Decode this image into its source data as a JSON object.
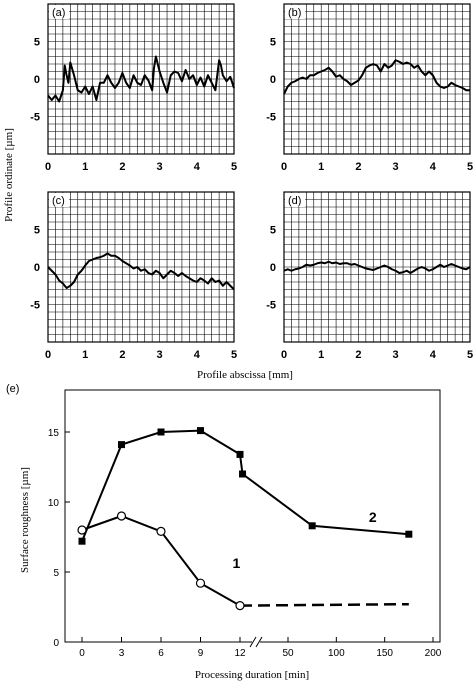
{
  "figure": {
    "profile_ylabel": "Profile ordinate [µm]",
    "profile_xlabel": "Profile abscissa [mm]"
  },
  "chart_data": [
    {
      "type": "line",
      "panel": "(a)",
      "xlim": [
        0,
        5
      ],
      "ylim": [
        -10,
        10
      ],
      "xticks": [
        "0",
        "1",
        "2",
        "3",
        "4",
        "5"
      ],
      "yticks": [
        "5",
        "0",
        "-5"
      ],
      "xlabel": "Profile abscissa [mm]",
      "ylabel": "Profile ordinate [µm]",
      "grid": true,
      "series": [
        {
          "x": [
            0,
            0.1,
            0.2,
            0.3,
            0.4,
            0.45,
            0.5,
            0.55,
            0.6,
            0.7,
            0.8,
            0.9,
            1.0,
            1.1,
            1.2,
            1.3,
            1.4,
            1.5,
            1.6,
            1.7,
            1.8,
            1.9,
            2.0,
            2.1,
            2.2,
            2.3,
            2.4,
            2.5,
            2.6,
            2.7,
            2.8,
            2.85,
            2.9,
            3.0,
            3.1,
            3.2,
            3.3,
            3.4,
            3.5,
            3.6,
            3.7,
            3.8,
            3.9,
            4.0,
            4.1,
            4.2,
            4.3,
            4.4,
            4.5,
            4.6,
            4.65,
            4.7,
            4.8,
            4.9,
            5.0
          ],
          "y": [
            -2.2,
            -2.8,
            -2.2,
            -3.0,
            -1.5,
            1.8,
            0.5,
            -0.5,
            2.2,
            0.5,
            -1.5,
            -1.8,
            -1.0,
            -2.0,
            -1.0,
            -2.8,
            -0.5,
            -0.5,
            0.5,
            -0.5,
            -1.2,
            -0.5,
            0.8,
            -0.5,
            -1.2,
            0.5,
            -0.5,
            -0.8,
            0.5,
            -0.2,
            -1.5,
            1.5,
            3.0,
            1.0,
            -0.5,
            -1.8,
            0.5,
            1.0,
            0.8,
            -0.3,
            1.2,
            0.0,
            0.5,
            -0.8,
            0.2,
            -1.0,
            0.5,
            -0.5,
            -1.5,
            2.5,
            1.8,
            0.5,
            -0.3,
            0.3,
            -1.2
          ]
        }
      ]
    },
    {
      "type": "line",
      "panel": "(b)",
      "xlim": [
        0,
        5
      ],
      "ylim": [
        -10,
        10
      ],
      "xticks": [
        "0",
        "1",
        "2",
        "3",
        "4",
        "5"
      ],
      "yticks": [
        "5",
        "0",
        "-5"
      ],
      "grid": true,
      "series": [
        {
          "x": [
            0,
            0.1,
            0.2,
            0.3,
            0.4,
            0.5,
            0.6,
            0.7,
            0.8,
            0.9,
            1.0,
            1.1,
            1.2,
            1.3,
            1.4,
            1.5,
            1.6,
            1.7,
            1.8,
            1.9,
            2.0,
            2.1,
            2.2,
            2.3,
            2.4,
            2.5,
            2.6,
            2.7,
            2.8,
            2.9,
            3.0,
            3.1,
            3.2,
            3.3,
            3.4,
            3.5,
            3.6,
            3.7,
            3.8,
            3.9,
            4.0,
            4.1,
            4.2,
            4.3,
            4.4,
            4.5,
            4.6,
            4.7,
            4.8,
            4.9,
            5.0
          ],
          "y": [
            -2.0,
            -1.0,
            -0.5,
            -0.3,
            0.0,
            0.2,
            0.0,
            0.5,
            0.5,
            0.8,
            1.0,
            1.2,
            1.5,
            1.0,
            0.3,
            0.5,
            0.0,
            -0.3,
            -0.8,
            -0.5,
            -0.2,
            0.5,
            1.5,
            1.8,
            2.0,
            1.8,
            1.0,
            2.0,
            1.5,
            1.8,
            2.5,
            2.3,
            2.0,
            2.2,
            2.0,
            1.5,
            1.8,
            1.0,
            0.5,
            1.0,
            0.5,
            -0.5,
            -1.0,
            -1.2,
            -1.0,
            -0.5,
            -0.8,
            -1.0,
            -1.2,
            -1.5,
            -1.5
          ]
        }
      ]
    },
    {
      "type": "line",
      "panel": "(c)",
      "xlim": [
        0,
        5
      ],
      "ylim": [
        -10,
        10
      ],
      "xticks": [
        "0",
        "1",
        "2",
        "3",
        "4",
        "5"
      ],
      "yticks": [
        "5",
        "0",
        "-5"
      ],
      "grid": true,
      "series": [
        {
          "x": [
            0,
            0.1,
            0.2,
            0.3,
            0.4,
            0.5,
            0.6,
            0.7,
            0.8,
            0.9,
            1.0,
            1.1,
            1.2,
            1.3,
            1.4,
            1.5,
            1.6,
            1.7,
            1.8,
            1.9,
            2.0,
            2.1,
            2.2,
            2.3,
            2.4,
            2.5,
            2.6,
            2.7,
            2.8,
            2.9,
            3.0,
            3.1,
            3.2,
            3.3,
            3.4,
            3.5,
            3.6,
            3.7,
            3.8,
            3.9,
            4.0,
            4.1,
            4.2,
            4.3,
            4.4,
            4.5,
            4.6,
            4.7,
            4.8,
            4.9,
            5.0
          ],
          "y": [
            0.0,
            -0.5,
            -1.0,
            -1.8,
            -2.2,
            -2.8,
            -2.5,
            -2.0,
            -1.0,
            -0.5,
            0.2,
            0.8,
            1.0,
            1.2,
            1.3,
            1.5,
            1.8,
            1.5,
            1.5,
            1.2,
            0.8,
            0.5,
            0.2,
            -0.2,
            0.0,
            -0.5,
            -0.3,
            -0.8,
            -1.0,
            -0.5,
            -0.8,
            -1.5,
            -1.0,
            -0.5,
            -0.8,
            -1.2,
            -0.8,
            -1.2,
            -1.5,
            -1.8,
            -2.0,
            -1.5,
            -1.8,
            -2.2,
            -1.5,
            -2.0,
            -1.8,
            -2.5,
            -2.0,
            -2.5,
            -3.0
          ]
        }
      ]
    },
    {
      "type": "line",
      "panel": "(d)",
      "xlim": [
        0,
        5
      ],
      "ylim": [
        -10,
        10
      ],
      "xticks": [
        "0",
        "1",
        "2",
        "3",
        "4",
        "5"
      ],
      "yticks": [
        "5",
        "0",
        "-5"
      ],
      "grid": true,
      "series": [
        {
          "x": [
            0,
            0.1,
            0.2,
            0.3,
            0.4,
            0.5,
            0.6,
            0.7,
            0.8,
            0.9,
            1.0,
            1.1,
            1.2,
            1.3,
            1.4,
            1.5,
            1.6,
            1.7,
            1.8,
            1.9,
            2.0,
            2.1,
            2.2,
            2.3,
            2.4,
            2.5,
            2.6,
            2.7,
            2.8,
            2.9,
            3.0,
            3.1,
            3.2,
            3.3,
            3.4,
            3.5,
            3.6,
            3.7,
            3.8,
            3.9,
            4.0,
            4.1,
            4.2,
            4.3,
            4.4,
            4.5,
            4.6,
            4.7,
            4.8,
            4.9,
            5.0
          ],
          "y": [
            -0.5,
            -0.3,
            -0.5,
            -0.3,
            -0.2,
            0.0,
            0.3,
            0.2,
            0.3,
            0.5,
            0.6,
            0.5,
            0.7,
            0.5,
            0.6,
            0.4,
            0.5,
            0.5,
            0.3,
            0.4,
            0.2,
            0.0,
            -0.2,
            -0.3,
            -0.4,
            -0.2,
            0.0,
            0.2,
            0.0,
            -0.3,
            -0.5,
            -0.8,
            -0.7,
            -0.5,
            -0.8,
            -0.5,
            -0.2,
            0.0,
            -0.2,
            -0.5,
            -0.3,
            0.0,
            0.3,
            0.0,
            0.2,
            0.4,
            0.2,
            0.0,
            -0.2,
            -0.3,
            0.0
          ]
        }
      ]
    },
    {
      "type": "line",
      "panel": "(e)",
      "xlabel": "Processing duration [min]",
      "ylabel": "Surface roughness [µm]",
      "ylim": [
        0,
        18
      ],
      "yticks": [
        "0",
        "5",
        "10",
        "15"
      ],
      "xticks": [
        "0",
        "3",
        "6",
        "9",
        "12",
        "50",
        "100",
        "150",
        "200"
      ],
      "x_break": "12 / 50",
      "grid": false,
      "series": [
        {
          "name": "2",
          "marker": "filled-square",
          "x": [
            0,
            3,
            6,
            9,
            12,
            14,
            75,
            175
          ],
          "y": [
            7.2,
            14.1,
            15.0,
            15.1,
            13.4,
            12.0,
            8.3,
            7.7
          ]
        },
        {
          "name": "1",
          "marker": "open-circle",
          "x": [
            0,
            3,
            6,
            9,
            12
          ],
          "y": [
            8.0,
            9.0,
            7.9,
            4.2,
            2.6
          ],
          "dashed_continuation": {
            "x": [
              12,
              175
            ],
            "y": [
              2.6,
              2.7
            ]
          }
        }
      ]
    }
  ]
}
